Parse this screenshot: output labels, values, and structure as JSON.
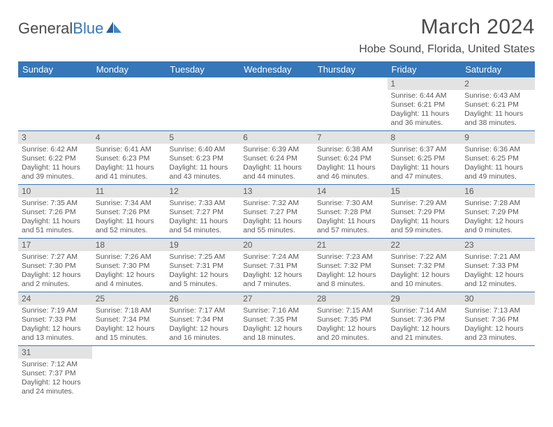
{
  "logo": {
    "text1": "General",
    "text2": "Blue"
  },
  "title": "March 2024",
  "location": "Hobe Sound, Florida, United States",
  "colors": {
    "header_bg": "#3577b8",
    "header_text": "#ffffff",
    "daynum_bg": "#e3e3e3",
    "text": "#585858"
  },
  "weekdays": [
    "Sunday",
    "Monday",
    "Tuesday",
    "Wednesday",
    "Thursday",
    "Friday",
    "Saturday"
  ],
  "cells": [
    {
      "n": "",
      "s": "",
      "t": "",
      "d": ""
    },
    {
      "n": "",
      "s": "",
      "t": "",
      "d": ""
    },
    {
      "n": "",
      "s": "",
      "t": "",
      "d": ""
    },
    {
      "n": "",
      "s": "",
      "t": "",
      "d": ""
    },
    {
      "n": "",
      "s": "",
      "t": "",
      "d": ""
    },
    {
      "n": "1",
      "s": "Sunrise: 6:44 AM",
      "t": "Sunset: 6:21 PM",
      "d": "Daylight: 11 hours and 36 minutes."
    },
    {
      "n": "2",
      "s": "Sunrise: 6:43 AM",
      "t": "Sunset: 6:21 PM",
      "d": "Daylight: 11 hours and 38 minutes."
    },
    {
      "n": "3",
      "s": "Sunrise: 6:42 AM",
      "t": "Sunset: 6:22 PM",
      "d": "Daylight: 11 hours and 39 minutes."
    },
    {
      "n": "4",
      "s": "Sunrise: 6:41 AM",
      "t": "Sunset: 6:23 PM",
      "d": "Daylight: 11 hours and 41 minutes."
    },
    {
      "n": "5",
      "s": "Sunrise: 6:40 AM",
      "t": "Sunset: 6:23 PM",
      "d": "Daylight: 11 hours and 43 minutes."
    },
    {
      "n": "6",
      "s": "Sunrise: 6:39 AM",
      "t": "Sunset: 6:24 PM",
      "d": "Daylight: 11 hours and 44 minutes."
    },
    {
      "n": "7",
      "s": "Sunrise: 6:38 AM",
      "t": "Sunset: 6:24 PM",
      "d": "Daylight: 11 hours and 46 minutes."
    },
    {
      "n": "8",
      "s": "Sunrise: 6:37 AM",
      "t": "Sunset: 6:25 PM",
      "d": "Daylight: 11 hours and 47 minutes."
    },
    {
      "n": "9",
      "s": "Sunrise: 6:36 AM",
      "t": "Sunset: 6:25 PM",
      "d": "Daylight: 11 hours and 49 minutes."
    },
    {
      "n": "10",
      "s": "Sunrise: 7:35 AM",
      "t": "Sunset: 7:26 PM",
      "d": "Daylight: 11 hours and 51 minutes."
    },
    {
      "n": "11",
      "s": "Sunrise: 7:34 AM",
      "t": "Sunset: 7:26 PM",
      "d": "Daylight: 11 hours and 52 minutes."
    },
    {
      "n": "12",
      "s": "Sunrise: 7:33 AM",
      "t": "Sunset: 7:27 PM",
      "d": "Daylight: 11 hours and 54 minutes."
    },
    {
      "n": "13",
      "s": "Sunrise: 7:32 AM",
      "t": "Sunset: 7:27 PM",
      "d": "Daylight: 11 hours and 55 minutes."
    },
    {
      "n": "14",
      "s": "Sunrise: 7:30 AM",
      "t": "Sunset: 7:28 PM",
      "d": "Daylight: 11 hours and 57 minutes."
    },
    {
      "n": "15",
      "s": "Sunrise: 7:29 AM",
      "t": "Sunset: 7:29 PM",
      "d": "Daylight: 11 hours and 59 minutes."
    },
    {
      "n": "16",
      "s": "Sunrise: 7:28 AM",
      "t": "Sunset: 7:29 PM",
      "d": "Daylight: 12 hours and 0 minutes."
    },
    {
      "n": "17",
      "s": "Sunrise: 7:27 AM",
      "t": "Sunset: 7:30 PM",
      "d": "Daylight: 12 hours and 2 minutes."
    },
    {
      "n": "18",
      "s": "Sunrise: 7:26 AM",
      "t": "Sunset: 7:30 PM",
      "d": "Daylight: 12 hours and 4 minutes."
    },
    {
      "n": "19",
      "s": "Sunrise: 7:25 AM",
      "t": "Sunset: 7:31 PM",
      "d": "Daylight: 12 hours and 5 minutes."
    },
    {
      "n": "20",
      "s": "Sunrise: 7:24 AM",
      "t": "Sunset: 7:31 PM",
      "d": "Daylight: 12 hours and 7 minutes."
    },
    {
      "n": "21",
      "s": "Sunrise: 7:23 AM",
      "t": "Sunset: 7:32 PM",
      "d": "Daylight: 12 hours and 8 minutes."
    },
    {
      "n": "22",
      "s": "Sunrise: 7:22 AM",
      "t": "Sunset: 7:32 PM",
      "d": "Daylight: 12 hours and 10 minutes."
    },
    {
      "n": "23",
      "s": "Sunrise: 7:21 AM",
      "t": "Sunset: 7:33 PM",
      "d": "Daylight: 12 hours and 12 minutes."
    },
    {
      "n": "24",
      "s": "Sunrise: 7:19 AM",
      "t": "Sunset: 7:33 PM",
      "d": "Daylight: 12 hours and 13 minutes."
    },
    {
      "n": "25",
      "s": "Sunrise: 7:18 AM",
      "t": "Sunset: 7:34 PM",
      "d": "Daylight: 12 hours and 15 minutes."
    },
    {
      "n": "26",
      "s": "Sunrise: 7:17 AM",
      "t": "Sunset: 7:34 PM",
      "d": "Daylight: 12 hours and 16 minutes."
    },
    {
      "n": "27",
      "s": "Sunrise: 7:16 AM",
      "t": "Sunset: 7:35 PM",
      "d": "Daylight: 12 hours and 18 minutes."
    },
    {
      "n": "28",
      "s": "Sunrise: 7:15 AM",
      "t": "Sunset: 7:35 PM",
      "d": "Daylight: 12 hours and 20 minutes."
    },
    {
      "n": "29",
      "s": "Sunrise: 7:14 AM",
      "t": "Sunset: 7:36 PM",
      "d": "Daylight: 12 hours and 21 minutes."
    },
    {
      "n": "30",
      "s": "Sunrise: 7:13 AM",
      "t": "Sunset: 7:36 PM",
      "d": "Daylight: 12 hours and 23 minutes."
    },
    {
      "n": "31",
      "s": "Sunrise: 7:12 AM",
      "t": "Sunset: 7:37 PM",
      "d": "Daylight: 12 hours and 24 minutes."
    },
    {
      "n": "",
      "s": "",
      "t": "",
      "d": ""
    },
    {
      "n": "",
      "s": "",
      "t": "",
      "d": ""
    },
    {
      "n": "",
      "s": "",
      "t": "",
      "d": ""
    },
    {
      "n": "",
      "s": "",
      "t": "",
      "d": ""
    },
    {
      "n": "",
      "s": "",
      "t": "",
      "d": ""
    },
    {
      "n": "",
      "s": "",
      "t": "",
      "d": ""
    }
  ]
}
